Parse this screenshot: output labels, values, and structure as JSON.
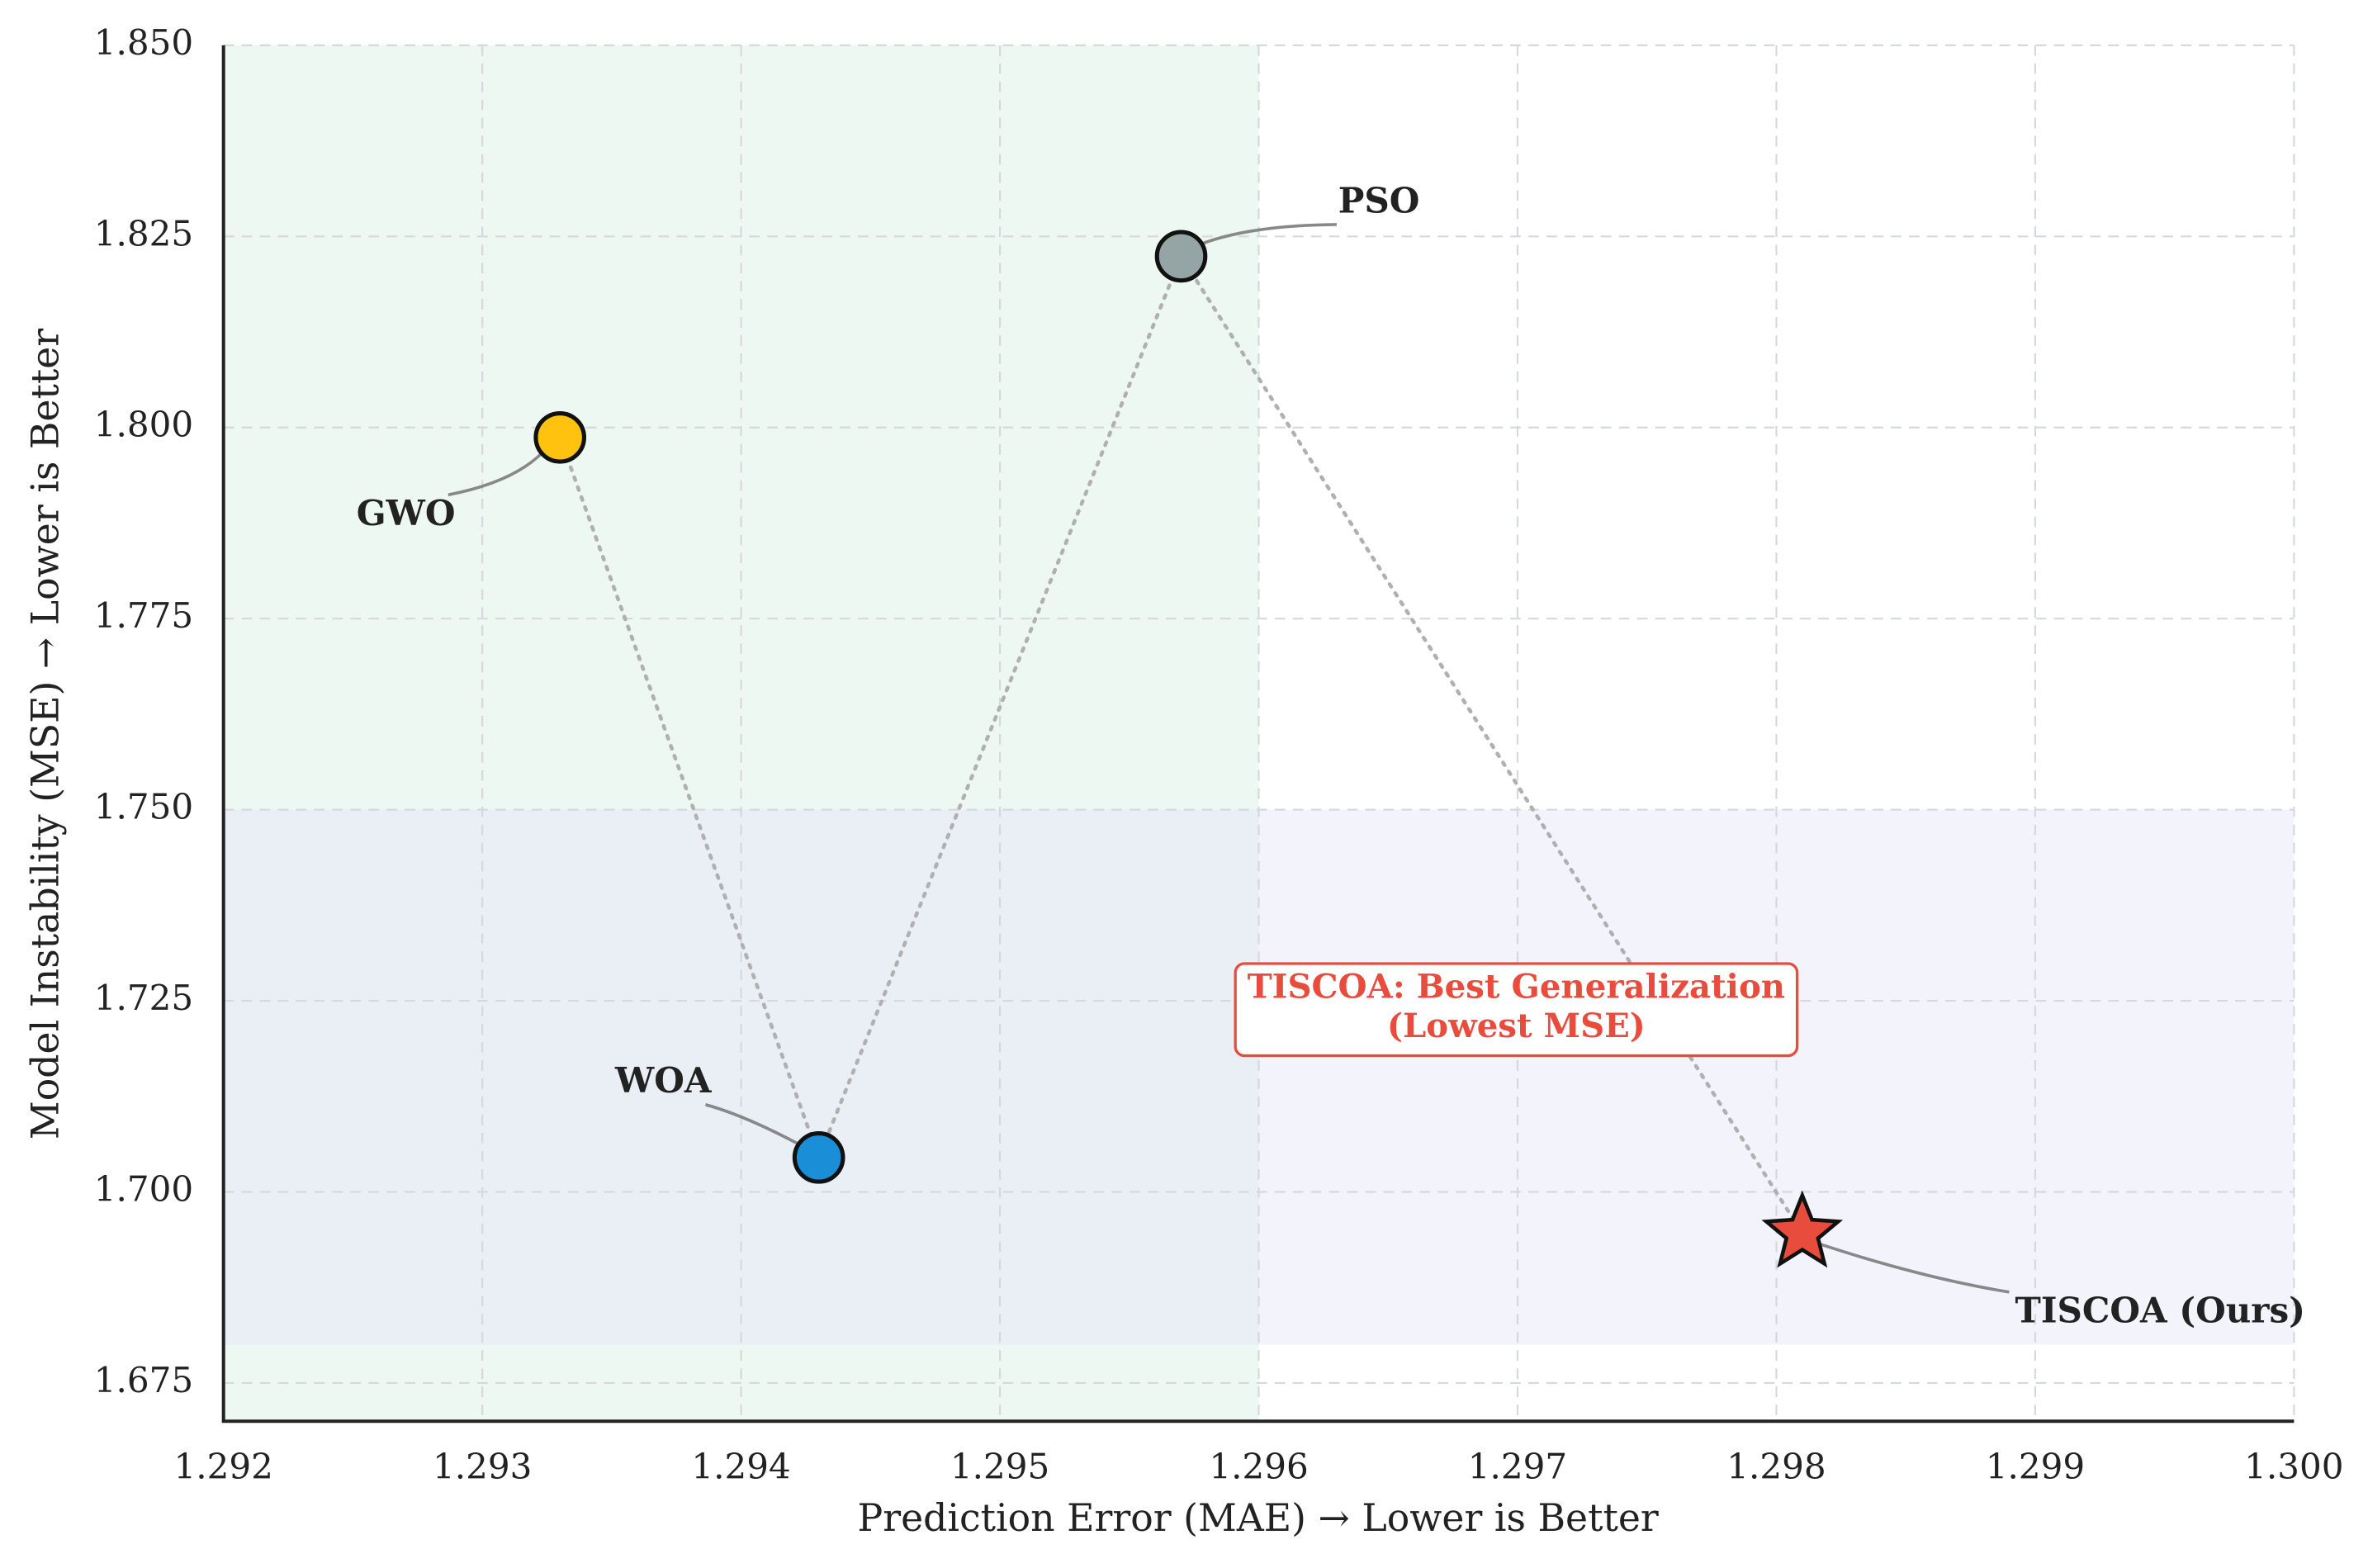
{
  "chart_data": {
    "type": "scatter",
    "x_label": "Prediction Error (MAE) → Lower is Better",
    "y_label": "Model Instability (MSE) → Lower is Better",
    "xlim": [
      1.292,
      1.3
    ],
    "ylim": [
      1.67,
      1.85
    ],
    "xticks": [
      1.292,
      1.293,
      1.294,
      1.295,
      1.296,
      1.297,
      1.298,
      1.299,
      {
        "value": 1.3,
        "label": "1.300"
      }
    ],
    "yticks": [
      1.675,
      {
        "value": 1.7,
        "label": "1.700"
      },
      1.725,
      {
        "value": 1.75,
        "label": "1.750"
      },
      1.775,
      {
        "value": 1.8,
        "label": "1.800"
      },
      1.825,
      {
        "value": 1.85,
        "label": "1.850"
      }
    ],
    "grid": true,
    "regions": [
      {
        "x": [
          1.292,
          1.296
        ],
        "y": [
          1.67,
          1.85
        ],
        "color": "#d8efe3"
      },
      {
        "x": [
          1.292,
          1.3
        ],
        "y": [
          1.68,
          1.75
        ],
        "color": "#e4e4f8"
      }
    ],
    "line_color": "#b0b0b0",
    "points": [
      {
        "name": "GWO",
        "x": 1.2933,
        "y": 1.7987,
        "color": "#ffc20e",
        "marker": "circle"
      },
      {
        "name": "WOA",
        "x": 1.2943,
        "y": 1.7045,
        "color": "#1a8fd8",
        "marker": "circle"
      },
      {
        "name": "PSO",
        "x": 1.2957,
        "y": 1.8224,
        "color": "#95a5a6",
        "marker": "circle"
      },
      {
        "name": "TISCOA (Ours)",
        "x": 1.2981,
        "y": 1.6946,
        "color": "#e74c3c",
        "marker": "star"
      }
    ],
    "annotation": {
      "lines": [
        "TISCOA: Best Generalization",
        "(Lowest MSE)"
      ],
      "color": "#e74c3c"
    }
  }
}
